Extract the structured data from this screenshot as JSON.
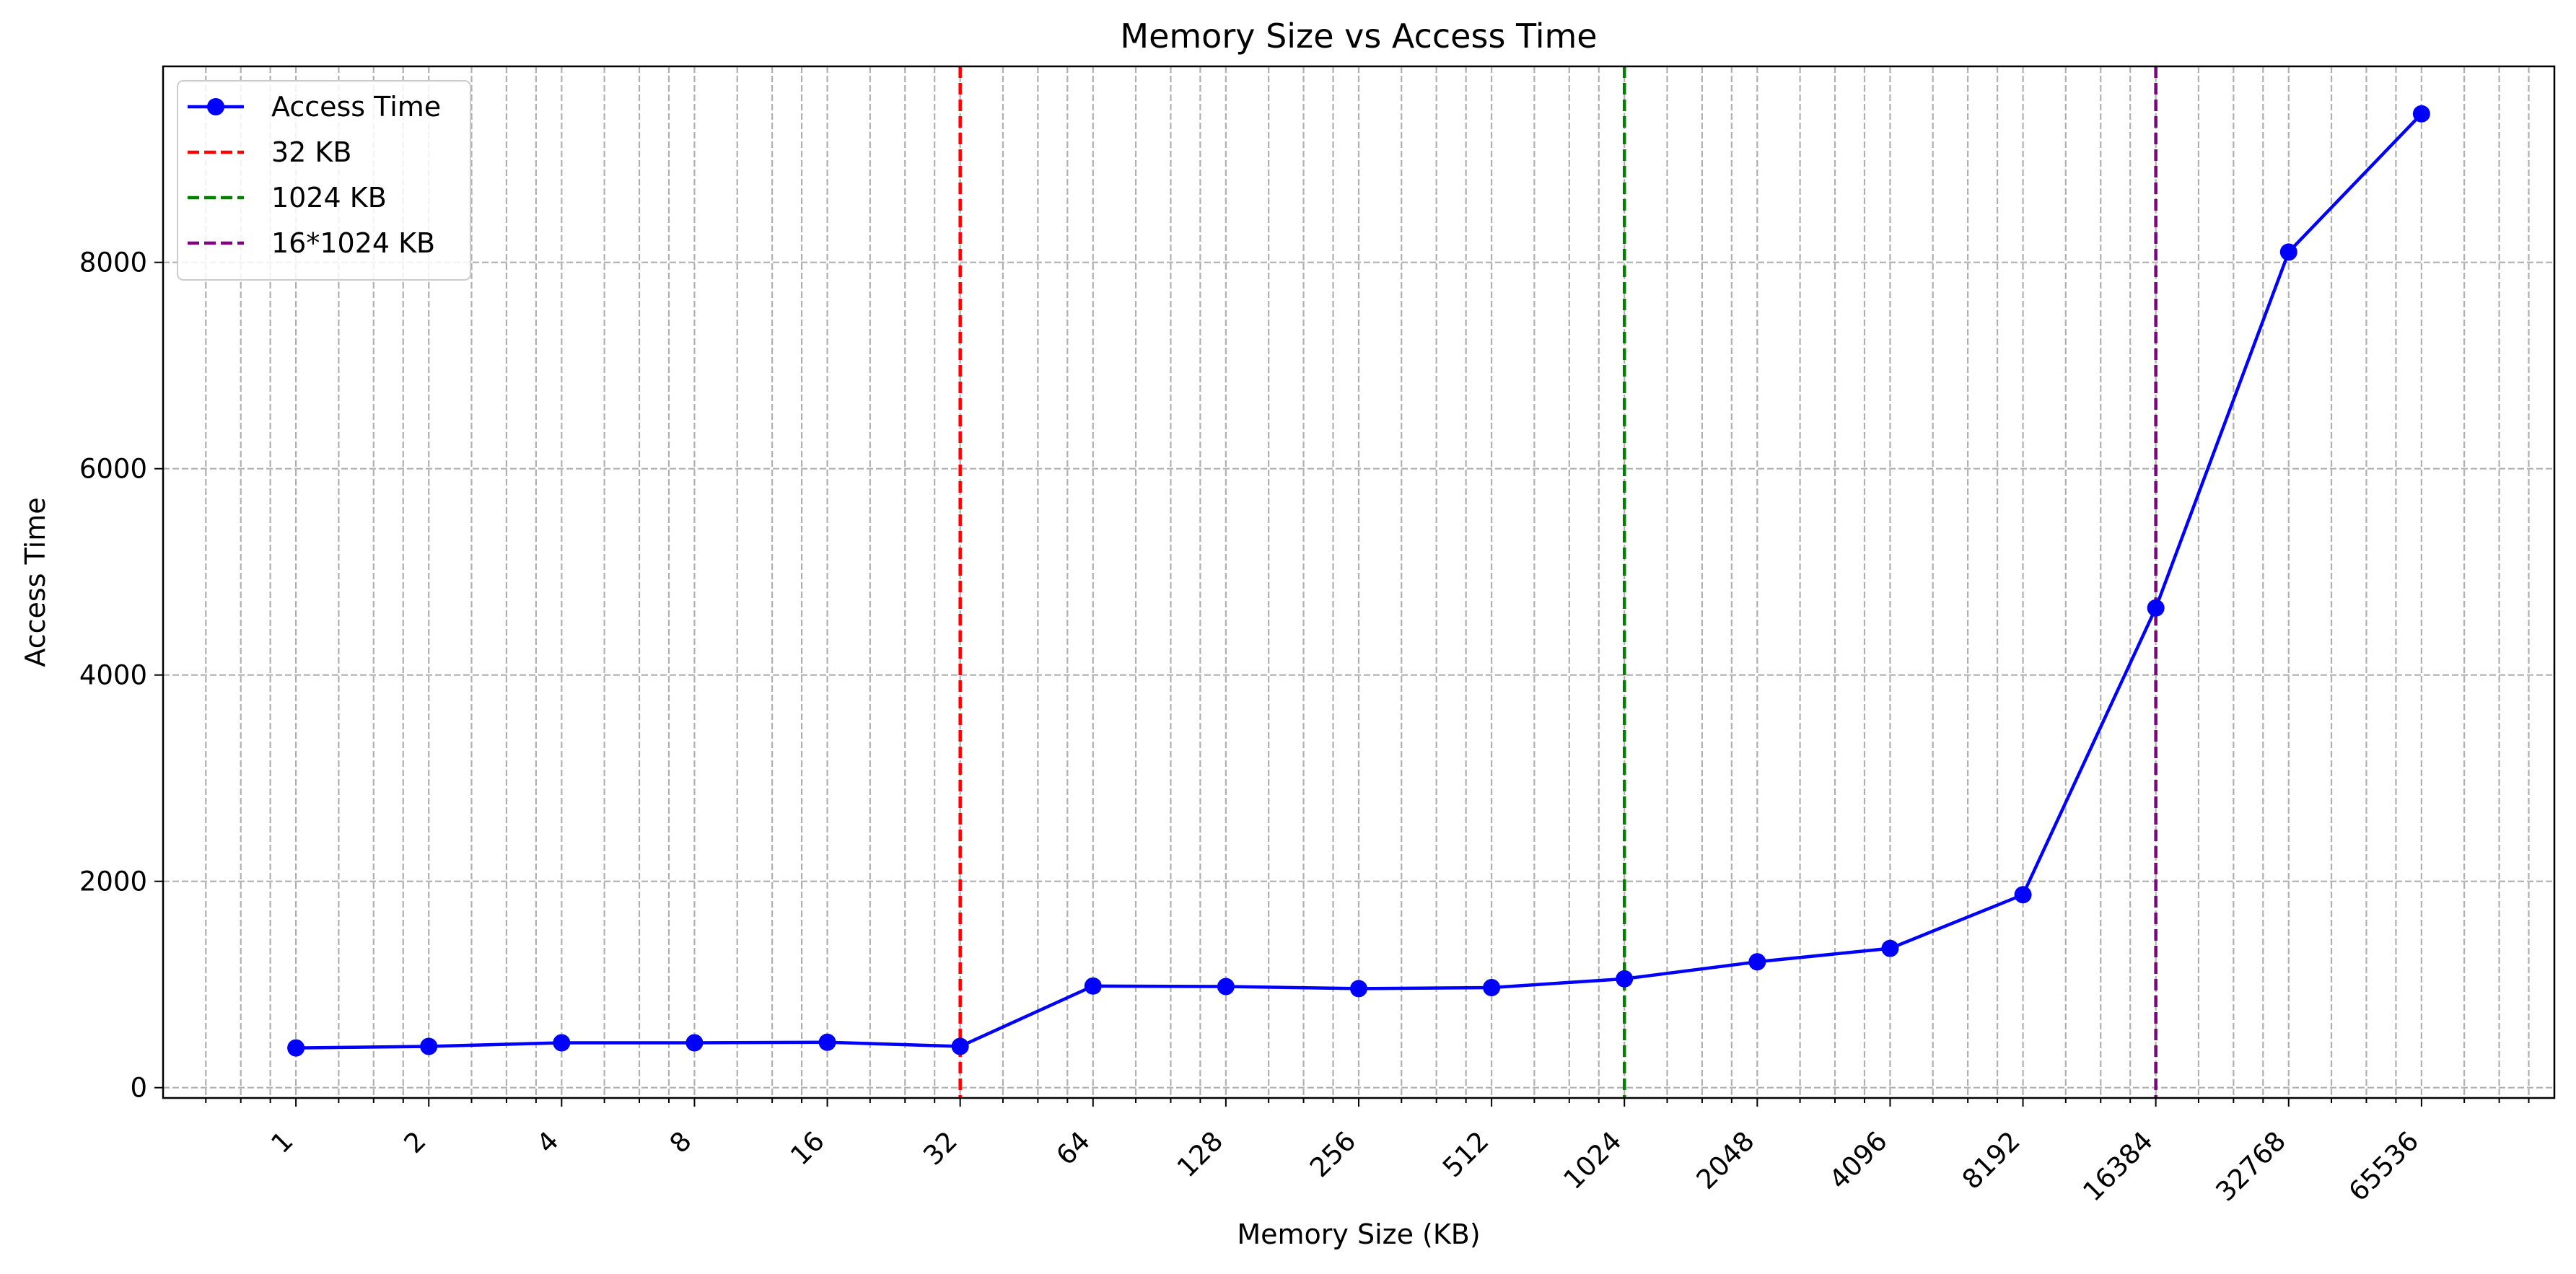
{
  "chart_data": {
    "type": "line",
    "title": "Memory Size vs Access Time",
    "xlabel": "Memory Size (KB)",
    "ylabel": "Access Time",
    "xscale": "log2",
    "xlim": [
      0.5,
      131072
    ],
    "ylim": [
      -100,
      9900
    ],
    "grid": true,
    "legend_position": "top-left",
    "x_tick_labels": [
      "1",
      "2",
      "4",
      "8",
      "16",
      "32",
      "64",
      "128",
      "256",
      "512",
      "1024",
      "2048",
      "4096",
      "8192",
      "16384",
      "32768",
      "65536"
    ],
    "y_tick_labels": [
      "0",
      "2000",
      "4000",
      "6000",
      "8000"
    ],
    "y_ticks": [
      0,
      2000,
      4000,
      6000,
      8000
    ],
    "series": [
      {
        "name": "Access Time",
        "color": "#0000ff",
        "marker": "circle",
        "x": [
          1,
          2,
          4,
          8,
          16,
          32,
          64,
          128,
          256,
          512,
          1024,
          2048,
          4096,
          8192,
          16384,
          32768,
          65536
        ],
        "y": [
          385,
          400,
          435,
          435,
          440,
          400,
          985,
          980,
          960,
          970,
          1055,
          1220,
          1350,
          1870,
          4650,
          8100,
          9440
        ]
      }
    ],
    "reference_lines": [
      {
        "name": "32 KB",
        "x": 32,
        "color": "#ff0000",
        "style": "dashed"
      },
      {
        "name": "1024 KB",
        "x": 1024,
        "color": "#008000",
        "style": "dashed"
      },
      {
        "name": "16*1024 KB",
        "x": 16384,
        "color": "#800080",
        "style": "dashed"
      }
    ]
  }
}
